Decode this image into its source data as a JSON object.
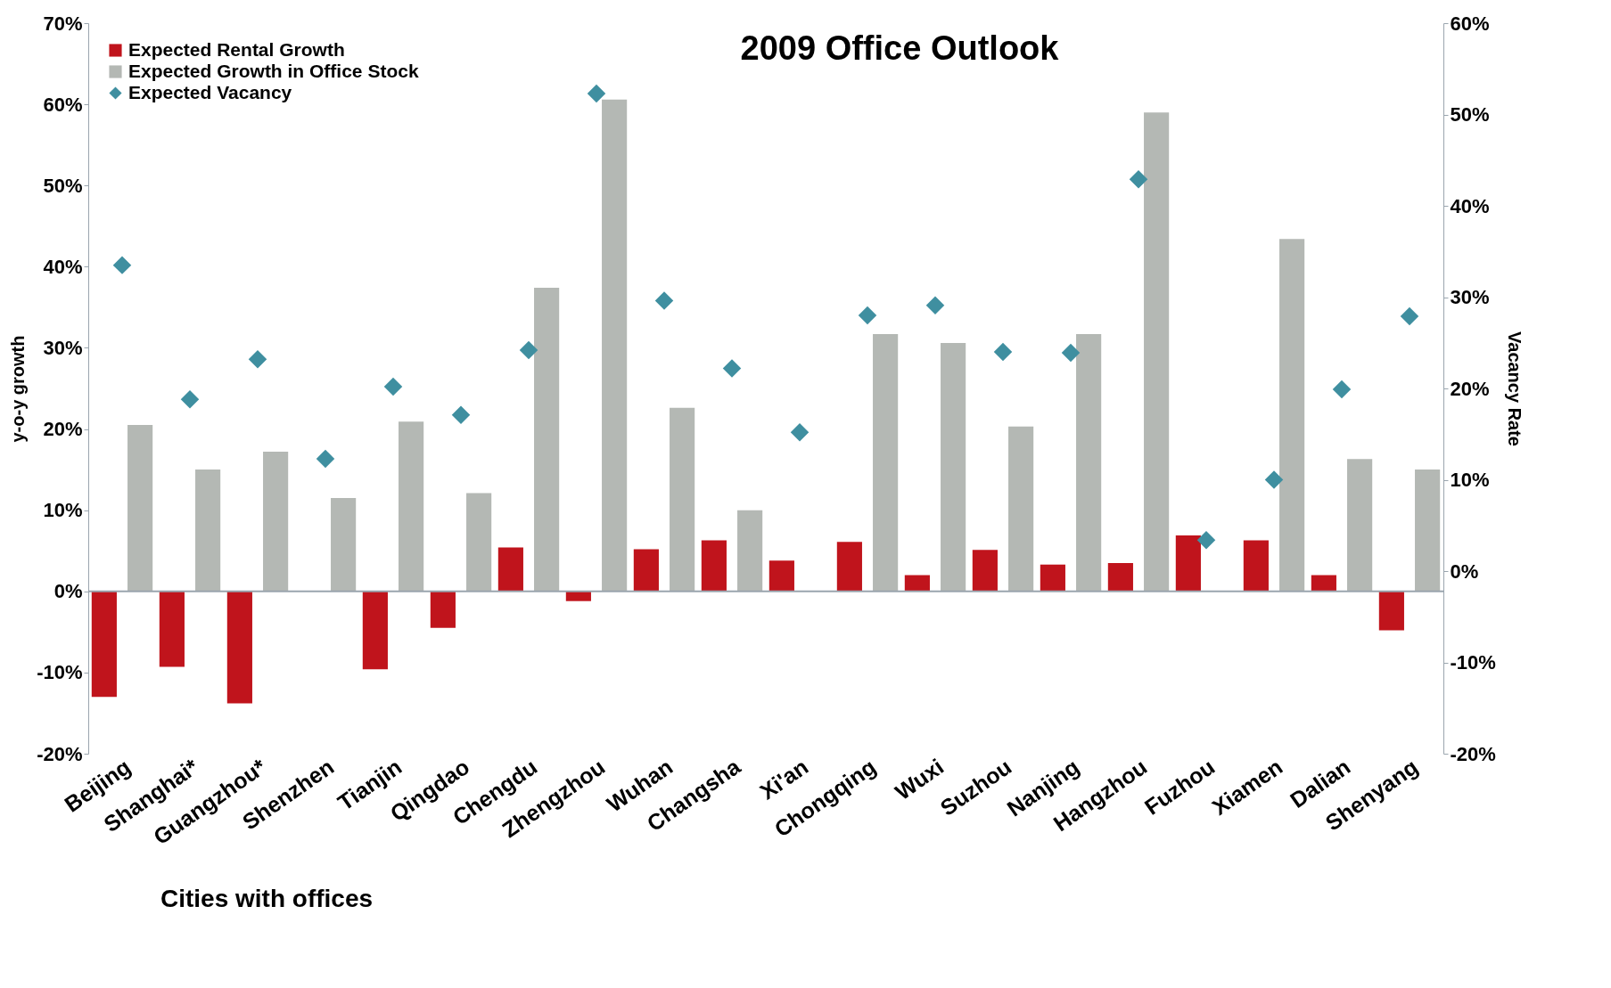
{
  "chart_data": {
    "type": "bar",
    "title": "2009 Office Outlook",
    "ylabel": "y-o-y growth",
    "y2label": "Vacancy Rate",
    "categories": [
      "Beijing",
      "Shanghai*",
      "Guangzhou*",
      "Shenzhen",
      "Tianjin",
      "Qingdao",
      "Chengdu",
      "Zhengzhou",
      "Wuhan",
      "Changsha",
      "Xi'an",
      "Chongqing",
      "Wuxi",
      "Suzhou",
      "Nanjing",
      "Hangzhou",
      "Fuzhou",
      "Xiamen",
      "Dalian",
      "Shenyang"
    ],
    "series": [
      {
        "name": "Expected Rental Growth",
        "type": "bar",
        "color": "#c0141c",
        "values": [
          -13.0,
          -9.3,
          -13.8,
          null,
          -9.6,
          -4.5,
          5.4,
          -1.2,
          5.2,
          6.3,
          3.8,
          6.1,
          2.0,
          5.1,
          3.3,
          3.5,
          6.9,
          6.3,
          2.0,
          -4.8
        ]
      },
      {
        "name": "Expected Growth in Office Stock",
        "type": "bar",
        "color": "#b4b8b4",
        "values": [
          20.5,
          15.0,
          17.2,
          11.5,
          20.9,
          12.1,
          37.4,
          60.6,
          22.6,
          10.0,
          null,
          31.7,
          30.6,
          20.3,
          31.7,
          59.0,
          null,
          43.4,
          16.3,
          15.0
        ]
      },
      {
        "name": "Expected Vacancy",
        "type": "scatter",
        "axis": "y2",
        "marker": "diamond",
        "color": "#3f8fa0",
        "values": [
          33.5,
          18.8,
          23.2,
          12.3,
          20.2,
          17.1,
          24.2,
          52.3,
          29.6,
          22.2,
          15.2,
          28.0,
          29.1,
          24.0,
          23.9,
          42.9,
          3.4,
          10.0,
          19.9,
          27.9
        ]
      }
    ],
    "ylim": [
      -20,
      70
    ],
    "yticks": [
      {
        "value": -20,
        "label": "-20%"
      },
      {
        "value": -10,
        "label": "-10%"
      },
      {
        "value": 0,
        "label": "0%"
      },
      {
        "value": 10,
        "label": "10%"
      },
      {
        "value": 20,
        "label": "20%"
      },
      {
        "value": 30,
        "label": "30%"
      },
      {
        "value": 40,
        "label": "40%"
      },
      {
        "value": 50,
        "label": "50%"
      },
      {
        "value": 60,
        "label": "60%"
      },
      {
        "value": 70,
        "label": "70%"
      }
    ],
    "y2lim": [
      -20,
      60
    ],
    "y2ticks": [
      {
        "value": -20,
        "label": "-20%"
      },
      {
        "value": -10,
        "label": "-10%"
      },
      {
        "value": 0,
        "label": "0%"
      },
      {
        "value": 10,
        "label": "10%"
      },
      {
        "value": 20,
        "label": "20%"
      },
      {
        "value": 30,
        "label": "30%"
      },
      {
        "value": 40,
        "label": "40%"
      },
      {
        "value": 50,
        "label": "50%"
      },
      {
        "value": 60,
        "label": "60%"
      }
    ],
    "grid": false,
    "legend": "top left",
    "ref_lines": [
      {
        "axis": "y",
        "value": 0,
        "color": "#9aa5ae"
      }
    ],
    "annotations": [
      "Cities with offices"
    ]
  }
}
